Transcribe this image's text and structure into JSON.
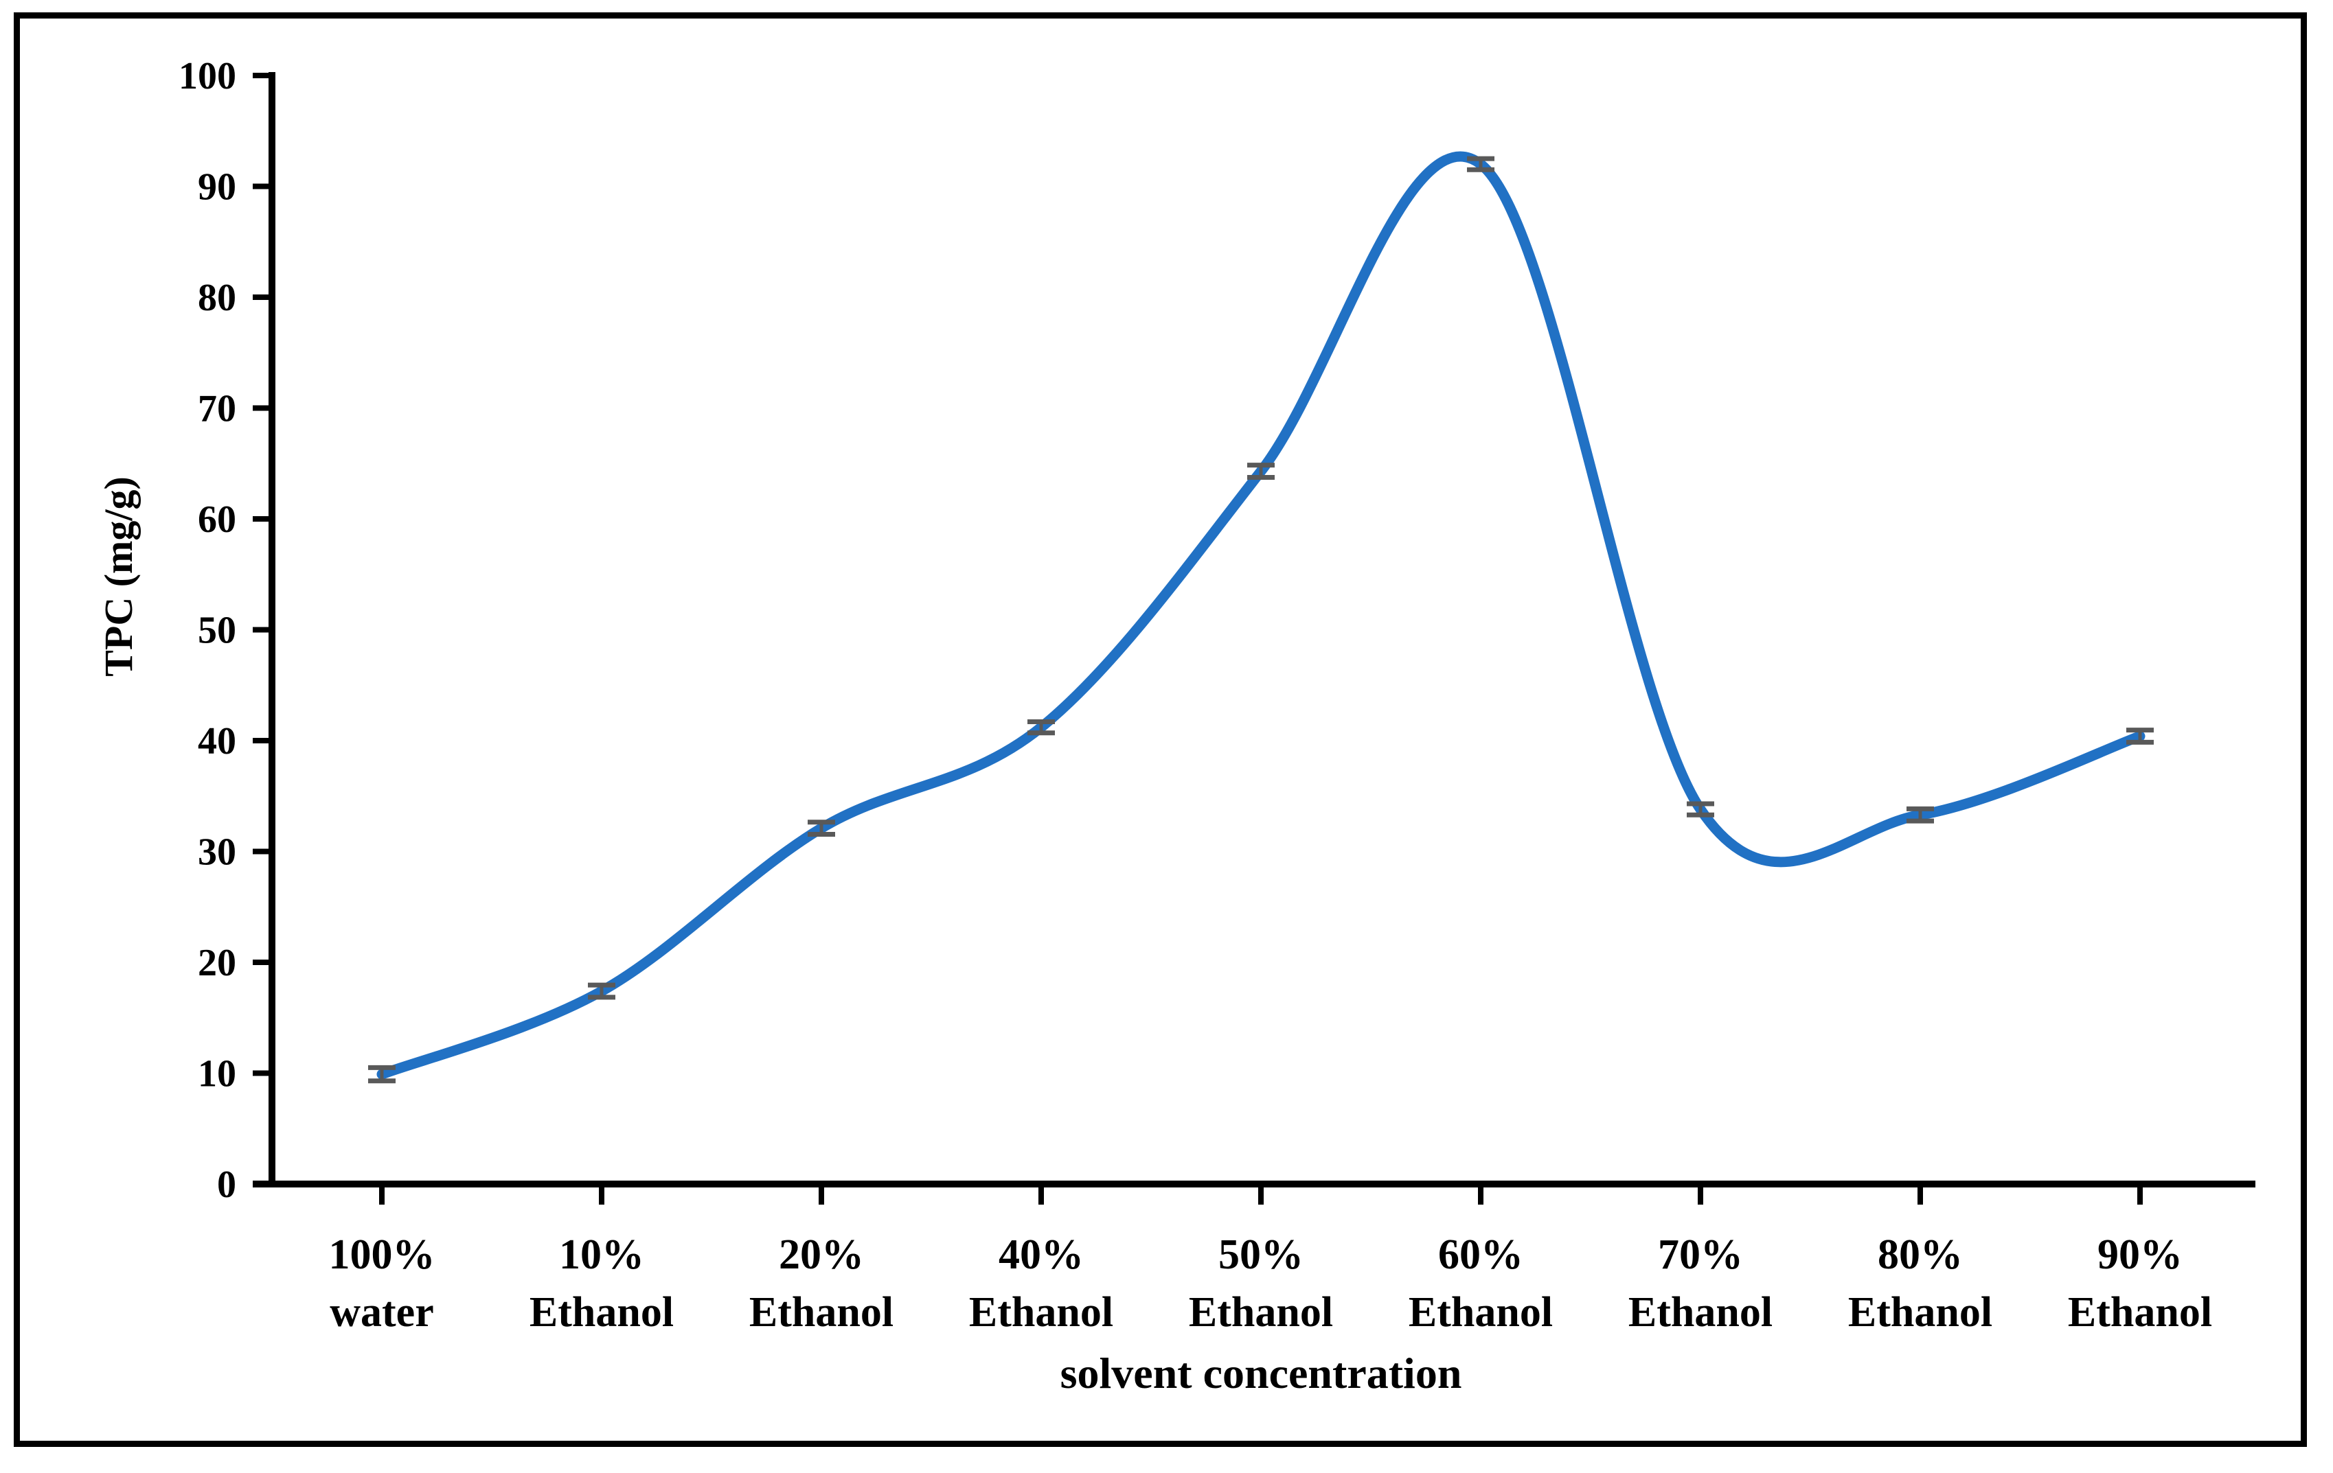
{
  "figure": {
    "background_color": "#ffffff",
    "border_color": "#000000",
    "axis_color": "#000000"
  },
  "chart_data": {
    "type": "line",
    "title": "",
    "xlabel": "solvent concentration",
    "ylabel": "TPC (mg/g)",
    "categories": [
      [
        "100%",
        "water"
      ],
      [
        "10%",
        "Ethanol"
      ],
      [
        "20%",
        "Ethanol"
      ],
      [
        "40%",
        "Ethanol"
      ],
      [
        "50%",
        "Ethanol"
      ],
      [
        "60%",
        "Ethanol"
      ],
      [
        "70%",
        "Ethanol"
      ],
      [
        "80%",
        "Ethanol"
      ],
      [
        "90%",
        "Ethanol"
      ]
    ],
    "series": [
      {
        "name": "TPC",
        "values": [
          9.9,
          17.4,
          32.1,
          41.2,
          64.3,
          92.0,
          33.8,
          33.3,
          40.4
        ],
        "errors": [
          0.6,
          0.55,
          0.55,
          0.5,
          0.55,
          0.5,
          0.5,
          0.55,
          0.55
        ],
        "line_color": "#2171C4",
        "error_bar_color": "#595959",
        "smooth": true
      }
    ],
    "ylim": [
      0,
      100
    ],
    "yticks": [
      0,
      10,
      20,
      30,
      40,
      50,
      60,
      70,
      80,
      90,
      100
    ],
    "grid": false,
    "legend": false,
    "markers": "error-bar-dashes"
  }
}
